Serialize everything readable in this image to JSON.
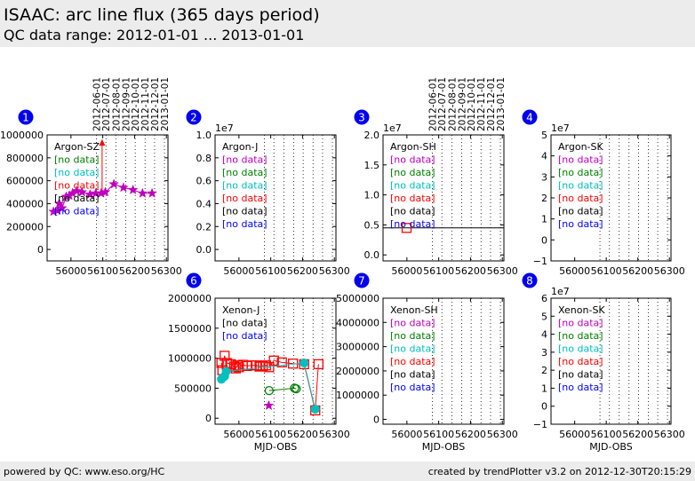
{
  "header": {
    "title": "ISAAC: arc line flux (365 days period)",
    "subtitle": "QC data range: 2012-01-01 ... 2013-01-01"
  },
  "footer": {
    "left": "powered by QC: www.eso.org/HC",
    "right": "created by trendPlotter v3.2 on 2012-12-30T20:15:29"
  },
  "colors": {
    "magenta": "#bf00bf",
    "green": "#008000",
    "cyan": "#00bfbf",
    "red": "#ff0000",
    "black": "#000000",
    "blue": "#0000ff",
    "badge": "#0000ee"
  },
  "chart_data": [
    {
      "id": "1",
      "panel": "Argon-SZ",
      "type": "scatter",
      "xlim": [
        55925,
        56305
      ],
      "ylim": [
        -100000,
        1000000
      ],
      "exponent": "",
      "yticks": [
        0,
        200000,
        400000,
        600000,
        800000,
        1000000
      ],
      "ytick_labels": [
        "0",
        "200000",
        "400000",
        "600000",
        "800000",
        "1000000"
      ],
      "xticks": [
        56000,
        56100,
        56200,
        56300
      ],
      "xtick_labels": [
        "56000",
        "56100",
        "56200",
        "56300"
      ],
      "xlabel": "",
      "date_markers": [
        {
          "x": 56080,
          "label": "2012-06-01"
        },
        {
          "x": 56110,
          "label": "2012-07-01"
        },
        {
          "x": 56141,
          "label": "2012-08-01"
        },
        {
          "x": 56172,
          "label": "2012-09-01"
        },
        {
          "x": 56202,
          "label": "2012-10-01"
        },
        {
          "x": 56233,
          "label": "2012-11-01"
        },
        {
          "x": 56263,
          "label": "2012-12-01"
        },
        {
          "x": 56294,
          "label": "2013-01-01"
        }
      ],
      "legend": [
        {
          "label": "Argon-SZ",
          "color": "black"
        },
        {
          "label": "[no data]",
          "color": "green"
        },
        {
          "label": "[no data]",
          "color": "cyan"
        },
        {
          "label": "[no data]",
          "color": "red"
        },
        {
          "label": "[no data]",
          "color": "black"
        },
        {
          "label": "[no data]",
          "color": "blue"
        }
      ],
      "series": [
        {
          "color": "magenta",
          "marker": "star",
          "line": true,
          "points": [
            [
              55945,
              330000
            ],
            [
              55958,
              340000
            ],
            [
              55963,
              400000
            ],
            [
              55972,
              360000
            ],
            [
              55985,
              460000
            ],
            [
              55995,
              470000
            ],
            [
              56005,
              490000
            ],
            [
              56018,
              510000
            ],
            [
              56035,
              500000
            ],
            [
              56060,
              480000
            ],
            [
              56078,
              490000
            ],
            [
              56095,
              490000
            ],
            [
              56108,
              500000
            ],
            [
              56135,
              570000
            ],
            [
              56165,
              540000
            ],
            [
              56195,
              520000
            ],
            [
              56225,
              490000
            ],
            [
              56255,
              490000
            ]
          ]
        }
      ],
      "extra_lines": [
        {
          "color": "red",
          "points": [
            [
              56098,
              480000
            ],
            [
              56098,
              960000
            ]
          ],
          "arrow": true
        }
      ]
    },
    {
      "id": "2",
      "panel": "Argon-J",
      "type": "scatter",
      "xlim": [
        55925,
        56305
      ],
      "ylim": [
        -0.1,
        1.0
      ],
      "exponent": "1e7",
      "yticks": [
        0,
        0.2,
        0.4,
        0.6,
        0.8,
        1.0
      ],
      "ytick_labels": [
        "0.0",
        "0.2",
        "0.4",
        "0.6",
        "0.8",
        "1.0"
      ],
      "xticks": [
        56000,
        56100,
        56200,
        56300
      ],
      "xtick_labels": [
        "56000",
        "56100",
        "56200",
        "56300"
      ],
      "xlabel": "",
      "date_markers": [
        {
          "x": 56080
        },
        {
          "x": 56110
        },
        {
          "x": 56141
        },
        {
          "x": 56172
        },
        {
          "x": 56202
        },
        {
          "x": 56233
        },
        {
          "x": 56263
        },
        {
          "x": 56294
        }
      ],
      "legend": [
        {
          "label": "Argon-J",
          "color": "black"
        },
        {
          "label": "[no data]",
          "color": "magenta"
        },
        {
          "label": "[no data]",
          "color": "green"
        },
        {
          "label": "[no data]",
          "color": "cyan"
        },
        {
          "label": "[no data]",
          "color": "red"
        },
        {
          "label": "[no data]",
          "color": "black"
        },
        {
          "label": "[no data]",
          "color": "blue"
        }
      ],
      "series": []
    },
    {
      "id": "3",
      "panel": "Argon-SH",
      "type": "scatter",
      "xlim": [
        55925,
        56305
      ],
      "ylim": [
        -0.1,
        2.0
      ],
      "exponent": "1e7",
      "yticks": [
        0,
        0.5,
        1.0,
        1.5,
        2.0
      ],
      "ytick_labels": [
        "0.0",
        "0.5",
        "1.0",
        "1.5",
        "2.0"
      ],
      "xticks": [
        56000,
        56100,
        56200,
        56300
      ],
      "xtick_labels": [
        "56000",
        "56100",
        "56200",
        "56300"
      ],
      "xlabel": "",
      "date_markers": [
        {
          "x": 56080,
          "label": "2012-06-01"
        },
        {
          "x": 56110,
          "label": "2012-07-01"
        },
        {
          "x": 56141,
          "label": "2012-08-01"
        },
        {
          "x": 56172,
          "label": "2012-09-01"
        },
        {
          "x": 56202,
          "label": "2012-10-01"
        },
        {
          "x": 56233,
          "label": "2012-11-01"
        },
        {
          "x": 56263,
          "label": "2012-12-01"
        },
        {
          "x": 56294,
          "label": "2013-01-01"
        }
      ],
      "legend": [
        {
          "label": "Argon-SH",
          "color": "black"
        },
        {
          "label": "[no data]",
          "color": "magenta"
        },
        {
          "label": "[no data]",
          "color": "green"
        },
        {
          "label": "[no data]",
          "color": "cyan"
        },
        {
          "label": "[no data]",
          "color": "red"
        },
        {
          "label": "[no data]",
          "color": "black"
        },
        {
          "label": "[no data]",
          "color": "blue"
        }
      ],
      "series": [
        {
          "color": "red",
          "marker": "square",
          "line": false,
          "points": [
            [
              55999,
              0.45
            ]
          ]
        }
      ],
      "extra_lines": [
        {
          "color": "black",
          "points": [
            [
              55925,
              0.45
            ],
            [
              56305,
              0.45
            ]
          ],
          "arrow": false
        }
      ]
    },
    {
      "id": "4",
      "panel": "Argon-SK",
      "type": "scatter",
      "xlim": [
        55925,
        56305
      ],
      "ylim": [
        -1,
        5
      ],
      "exponent": "1e7",
      "yticks": [
        -1,
        0,
        1,
        2,
        3,
        4,
        5
      ],
      "ytick_labels": [
        "−1",
        "0",
        "1",
        "2",
        "3",
        "4",
        "5"
      ],
      "xticks": [
        56000,
        56100,
        56200,
        56300
      ],
      "xtick_labels": [
        "56000",
        "56100",
        "56200",
        "56300"
      ],
      "xlabel": "",
      "date_markers": [
        {
          "x": 56080
        },
        {
          "x": 56110
        },
        {
          "x": 56141
        },
        {
          "x": 56172
        },
        {
          "x": 56202
        },
        {
          "x": 56233
        },
        {
          "x": 56263
        },
        {
          "x": 56294
        }
      ],
      "legend": [
        {
          "label": "Argon-SK",
          "color": "black"
        },
        {
          "label": "[no data]",
          "color": "magenta"
        },
        {
          "label": "[no data]",
          "color": "green"
        },
        {
          "label": "[no data]",
          "color": "cyan"
        },
        {
          "label": "[no data]",
          "color": "red"
        },
        {
          "label": "[no data]",
          "color": "black"
        },
        {
          "label": "[no data]",
          "color": "blue"
        }
      ],
      "series": []
    },
    {
      "id": "6",
      "panel": "Xenon-J",
      "type": "scatter",
      "xlim": [
        55925,
        56305
      ],
      "ylim": [
        -100000,
        2000000
      ],
      "exponent": "",
      "yticks": [
        0,
        500000,
        1000000,
        1500000,
        2000000
      ],
      "ytick_labels": [
        "0",
        "500000",
        "1000000",
        "1500000",
        "2000000"
      ],
      "xticks": [
        56000,
        56100,
        56200,
        56300
      ],
      "xtick_labels": [
        "56000",
        "56100",
        "56200",
        "56300"
      ],
      "xlabel": "MJD-OBS",
      "date_markers": [
        {
          "x": 56080
        },
        {
          "x": 56110
        },
        {
          "x": 56141
        },
        {
          "x": 56172
        },
        {
          "x": 56202
        },
        {
          "x": 56233
        },
        {
          "x": 56263
        },
        {
          "x": 56294
        }
      ],
      "legend": [
        {
          "label": "Xenon-J",
          "color": "black"
        },
        {
          "label": "[no data]",
          "color": "black"
        },
        {
          "label": "[no data]",
          "color": "blue"
        }
      ],
      "series": [
        {
          "color": "red",
          "marker": "square",
          "line": true,
          "points": [
            [
              55945,
              920000
            ],
            [
              55948,
              800000
            ],
            [
              55955,
              1040000
            ],
            [
              55962,
              920000
            ],
            [
              55975,
              900000
            ],
            [
              55985,
              860000
            ],
            [
              55990,
              830000
            ],
            [
              55995,
              880000
            ],
            [
              56000,
              850000
            ],
            [
              56012,
              890000
            ],
            [
              56025,
              870000
            ],
            [
              56040,
              880000
            ],
            [
              56055,
              880000
            ],
            [
              56065,
              860000
            ],
            [
              56075,
              870000
            ],
            [
              56085,
              880000
            ],
            [
              56095,
              850000
            ],
            [
              56110,
              960000
            ],
            [
              56135,
              930000
            ],
            [
              56170,
              910000
            ],
            [
              56205,
              900000
            ],
            [
              56240,
              130000
            ],
            [
              56250,
              900000
            ]
          ]
        },
        {
          "color": "cyan",
          "marker": "circle",
          "line": true,
          "points": [
            [
              55945,
              650000
            ],
            [
              55950,
              680000
            ],
            [
              55955,
              700000
            ],
            [
              55960,
              780000
            ],
            [
              56205,
              920000
            ],
            [
              56240,
              150000
            ]
          ]
        },
        {
          "color": "green",
          "marker": "circle-open",
          "line": true,
          "points": [
            [
              56095,
              460000
            ],
            [
              56175,
              500000
            ],
            [
              56180,
              490000
            ]
          ]
        },
        {
          "color": "magenta",
          "marker": "star",
          "line": false,
          "points": [
            [
              56094,
              210000
            ]
          ]
        }
      ]
    },
    {
      "id": "7",
      "panel": "Xenon-SH",
      "type": "scatter",
      "xlim": [
        55925,
        56305
      ],
      "ylim": [
        -200000,
        5000000
      ],
      "exponent": "",
      "yticks": [
        0,
        1000000,
        2000000,
        3000000,
        4000000,
        5000000
      ],
      "ytick_labels": [
        "0",
        "1000000",
        "2000000",
        "3000000",
        "4000000",
        "5000000"
      ],
      "xticks": [
        56000,
        56100,
        56200,
        56300
      ],
      "xtick_labels": [
        "56000",
        "56100",
        "56200",
        "56300"
      ],
      "xlabel": "MJD-OBS",
      "date_markers": [
        {
          "x": 56080
        },
        {
          "x": 56110
        },
        {
          "x": 56141
        },
        {
          "x": 56172
        },
        {
          "x": 56202
        },
        {
          "x": 56233
        },
        {
          "x": 56263
        },
        {
          "x": 56294
        }
      ],
      "legend": [
        {
          "label": "Xenon-SH",
          "color": "black"
        },
        {
          "label": "[no data]",
          "color": "magenta"
        },
        {
          "label": "[no data]",
          "color": "green"
        },
        {
          "label": "[no data]",
          "color": "cyan"
        },
        {
          "label": "[no data]",
          "color": "red"
        },
        {
          "label": "[no data]",
          "color": "black"
        },
        {
          "label": "[no data]",
          "color": "blue"
        }
      ],
      "series": []
    },
    {
      "id": "8",
      "panel": "Xenon-SK",
      "type": "scatter",
      "xlim": [
        55925,
        56305
      ],
      "ylim": [
        -1,
        6
      ],
      "exponent": "1e7",
      "yticks": [
        -1,
        0,
        1,
        2,
        3,
        4,
        5,
        6
      ],
      "ytick_labels": [
        "−1",
        "0",
        "1",
        "2",
        "3",
        "4",
        "5",
        "6"
      ],
      "xticks": [
        56000,
        56100,
        56200,
        56300
      ],
      "xtick_labels": [
        "56000",
        "56100",
        "56200",
        "56300"
      ],
      "xlabel": "MJD-OBS",
      "date_markers": [
        {
          "x": 56080
        },
        {
          "x": 56110
        },
        {
          "x": 56141
        },
        {
          "x": 56172
        },
        {
          "x": 56202
        },
        {
          "x": 56233
        },
        {
          "x": 56263
        },
        {
          "x": 56294
        }
      ],
      "legend": [
        {
          "label": "Xenon-SK",
          "color": "black"
        },
        {
          "label": "[no data]",
          "color": "magenta"
        },
        {
          "label": "[no data]",
          "color": "green"
        },
        {
          "label": "[no data]",
          "color": "cyan"
        },
        {
          "label": "[no data]",
          "color": "red"
        },
        {
          "label": "[no data]",
          "color": "black"
        },
        {
          "label": "[no data]",
          "color": "blue"
        }
      ],
      "series": []
    }
  ]
}
